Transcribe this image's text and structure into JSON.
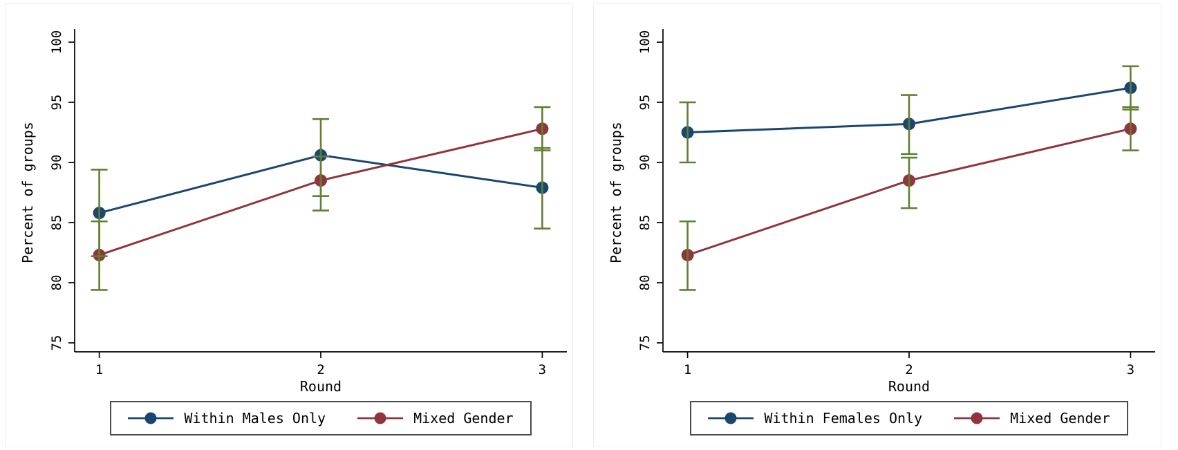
{
  "background": "#ffffff",
  "chart_data": [
    {
      "type": "line",
      "title": "",
      "xlabel": "Round",
      "ylabel": "Percent of groups",
      "ylim": [
        75,
        100
      ],
      "yticks": [
        75,
        80,
        85,
        90,
        95,
        100
      ],
      "categories": [
        "1",
        "2",
        "3"
      ],
      "grid": false,
      "legend_position": "bottom",
      "error_bars": true,
      "ci_color": "#5f8032",
      "series": [
        {
          "name": "Within Males Only",
          "color": "#1a476f",
          "marker": "circle",
          "values": [
            85.8,
            90.6,
            87.9
          ],
          "ci_low": [
            82.2,
            87.2,
            84.5
          ],
          "ci_high": [
            89.4,
            93.6,
            91.2
          ]
        },
        {
          "name": "Mixed Gender",
          "color": "#90353b",
          "marker": "circle",
          "values": [
            82.3,
            88.5,
            92.8
          ],
          "ci_low": [
            79.4,
            86.0,
            91.0
          ],
          "ci_high": [
            85.1,
            90.5,
            94.6
          ]
        }
      ]
    },
    {
      "type": "line",
      "title": "",
      "xlabel": "Round",
      "ylabel": "Percent of groups",
      "ylim": [
        75,
        100
      ],
      "yticks": [
        75,
        80,
        85,
        90,
        95,
        100
      ],
      "categories": [
        "1",
        "2",
        "3"
      ],
      "grid": false,
      "legend_position": "bottom",
      "error_bars": true,
      "ci_color": "#5f8032",
      "series": [
        {
          "name": "Within Females Only",
          "color": "#1a476f",
          "marker": "circle",
          "values": [
            92.5,
            93.2,
            96.2
          ],
          "ci_low": [
            90.0,
            90.7,
            94.4
          ],
          "ci_high": [
            95.0,
            95.6,
            98.0
          ]
        },
        {
          "name": "Mixed Gender",
          "color": "#90353b",
          "marker": "circle",
          "values": [
            82.3,
            88.5,
            92.8
          ],
          "ci_low": [
            79.4,
            86.2,
            91.0
          ],
          "ci_high": [
            85.1,
            90.4,
            94.6
          ]
        }
      ]
    }
  ]
}
